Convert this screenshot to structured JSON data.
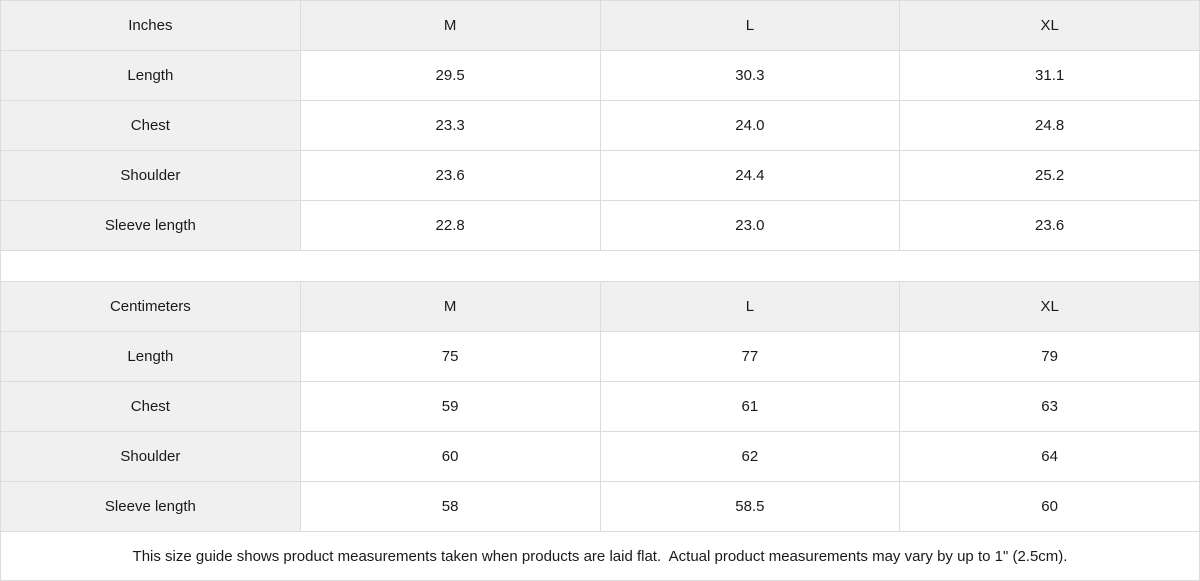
{
  "colors": {
    "header_background": "#f0f0f0",
    "border": "#dcdcdc",
    "text": "#1a1a1a",
    "cell_background": "#ffffff"
  },
  "tables": [
    {
      "unit_label": "Inches",
      "size_headers": [
        "M",
        "L",
        "XL"
      ],
      "rows": [
        {
          "label": "Length",
          "values": [
            "29.5",
            "30.3",
            "31.1"
          ]
        },
        {
          "label": "Chest",
          "values": [
            "23.3",
            "24.0",
            "24.8"
          ]
        },
        {
          "label": "Shoulder",
          "values": [
            "23.6",
            "24.4",
            "25.2"
          ]
        },
        {
          "label": "Sleeve length",
          "values": [
            "22.8",
            "23.0",
            "23.6"
          ]
        }
      ]
    },
    {
      "unit_label": "Centimeters",
      "size_headers": [
        "M",
        "L",
        "XL"
      ],
      "rows": [
        {
          "label": "Length",
          "values": [
            "75",
            "77",
            "79"
          ]
        },
        {
          "label": "Chest",
          "values": [
            "59",
            "61",
            "63"
          ]
        },
        {
          "label": "Shoulder",
          "values": [
            "60",
            "62",
            "64"
          ]
        },
        {
          "label": "Sleeve length",
          "values": [
            "58",
            "58.5",
            "60"
          ]
        }
      ]
    }
  ],
  "footer_note": "This size guide shows product measurements taken when products are laid flat.  Actual product measurements may vary by up to 1\" (2.5cm)."
}
